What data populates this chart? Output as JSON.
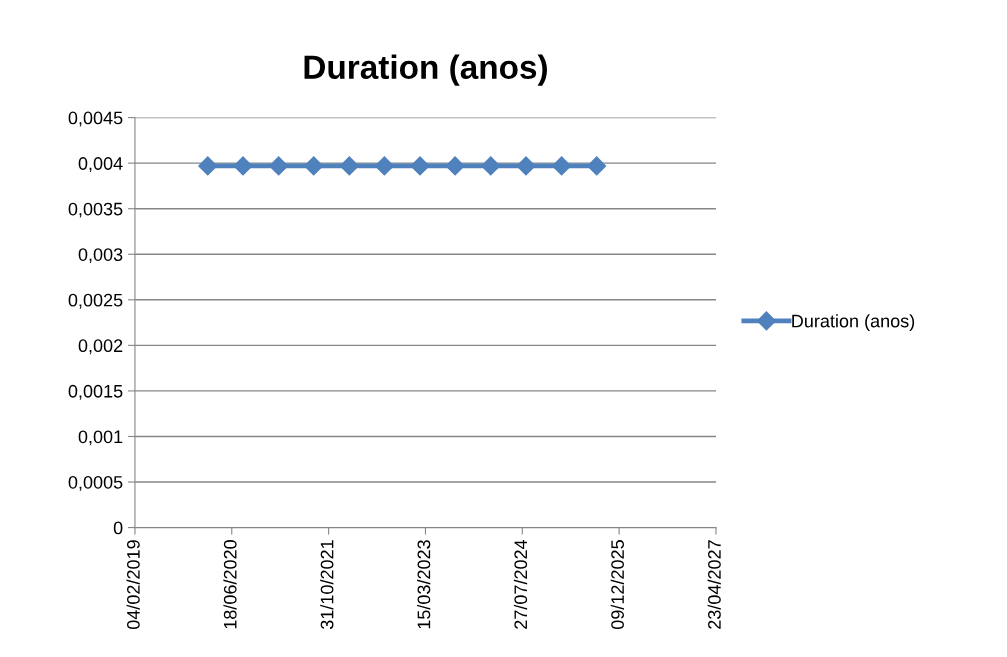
{
  "chart_data": {
    "type": "line",
    "title": "Duration (anos)",
    "x": [
      "2020-02-15",
      "2020-08-15",
      "2021-02-15",
      "2021-08-15",
      "2022-02-15",
      "2022-08-15",
      "2023-02-15",
      "2023-08-15",
      "2024-02-15",
      "2024-08-15",
      "2025-02-15",
      "2025-08-15"
    ],
    "series": [
      {
        "name": "Duration (anos)",
        "color": "#4f81bd",
        "values": [
          0.00397,
          0.00397,
          0.00397,
          0.00397,
          0.00397,
          0.00397,
          0.00397,
          0.00397,
          0.00397,
          0.00397,
          0.00397,
          0.00397
        ]
      }
    ],
    "xlim": [
      "2019-02-04",
      "2027-04-23"
    ],
    "xticks": [
      {
        "value": "2019-02-04",
        "label": "04/02/2019"
      },
      {
        "value": "2020-06-18",
        "label": "18/06/2020"
      },
      {
        "value": "2021-10-31",
        "label": "31/10/2021"
      },
      {
        "value": "2023-03-15",
        "label": "15/03/2023"
      },
      {
        "value": "2024-07-27",
        "label": "27/07/2024"
      },
      {
        "value": "2025-12-09",
        "label": "09/12/2025"
      },
      {
        "value": "2027-04-23",
        "label": "23/04/2027"
      }
    ],
    "ylim": [
      0,
      0.0045
    ],
    "yticks": [
      0,
      {
        "value": 0.0005,
        "label": "0,0005"
      },
      {
        "value": 0.001,
        "label": "0,001"
      },
      {
        "value": 0.0015,
        "label": "0,0015"
      },
      {
        "value": 0.002,
        "label": "0,002"
      },
      {
        "value": 0.0025,
        "label": "0,0025"
      },
      {
        "value": 0.003,
        "label": "0,003"
      },
      {
        "value": 0.0035,
        "label": "0,0035"
      },
      {
        "value": 0.004,
        "label": "0,004"
      },
      {
        "value": 0.0045,
        "label": "0,0045"
      }
    ],
    "grid": "y",
    "legend": "right",
    "marker": "diamond",
    "line_style": "solid"
  }
}
